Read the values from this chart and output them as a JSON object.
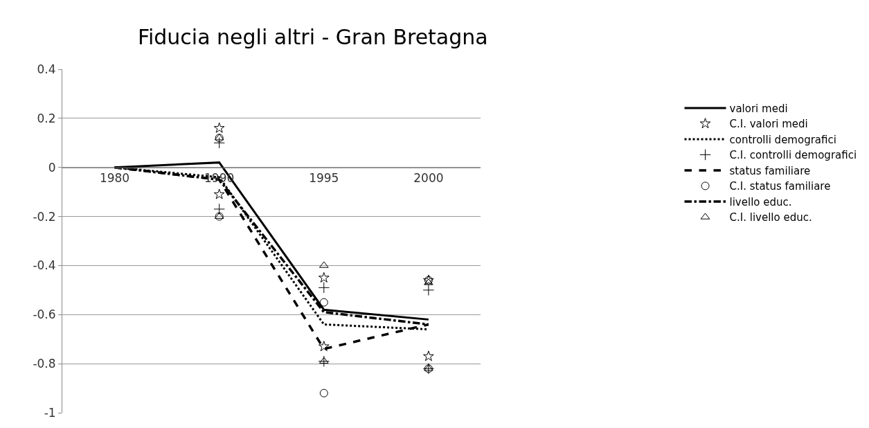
{
  "chart_data": {
    "type": "line",
    "title": "Fiducia negli altri - Gran Bretagna",
    "categories": [
      "1980",
      "1990",
      "1995",
      "2000"
    ],
    "ylim": [
      -1,
      0.4
    ],
    "yticks": [
      -1,
      -0.8,
      -0.6,
      -0.4,
      -0.2,
      0,
      0.2,
      0.4
    ],
    "grid": "y",
    "legend": "right",
    "series": [
      {
        "name": "valori medi",
        "color": "#000000",
        "line_style": "solid",
        "marker": "none",
        "values": [
          0,
          0.02,
          -0.58,
          -0.62
        ]
      },
      {
        "name": "C.I. valori medi",
        "type": "scatter",
        "color": "#000000",
        "marker": "star",
        "values": [
          null,
          0.16,
          -0.45,
          -0.46
        ]
      },
      {
        "name": "controlli demografici",
        "color": "#000000",
        "line_style": "dotted",
        "marker": "none",
        "values": [
          0,
          -0.04,
          -0.64,
          -0.66
        ]
      },
      {
        "name": "C.I. controlli demografici",
        "type": "scatter",
        "color": "#000000",
        "marker": "cross",
        "values": [
          null,
          0.1,
          -0.49,
          -0.5
        ]
      },
      {
        "name": "status familiare",
        "color": "#000000",
        "line_style": "dashed",
        "marker": "none",
        "values": [
          0,
          -0.05,
          -0.74,
          -0.64
        ]
      },
      {
        "name": "C.I. status familiare",
        "type": "scatter",
        "color": "#000000",
        "marker": "circle",
        "values": [
          null,
          0.12,
          -0.55,
          -0.46
        ]
      },
      {
        "name": "livello educ.",
        "color": "#000000",
        "line_style": "dashdot",
        "marker": "none",
        "values": [
          0,
          -0.05,
          -0.59,
          -0.64
        ]
      },
      {
        "name": "C.I. livello educ.",
        "type": "scatter",
        "color": "#000000",
        "marker": "triangle",
        "values": [
          null,
          0.12,
          -0.4,
          -0.47
        ]
      },
      {
        "type": "scatter",
        "color": "#000000",
        "marker": "star",
        "values": [
          null,
          -0.11,
          -0.73,
          -0.77
        ]
      },
      {
        "type": "scatter",
        "color": "#000000",
        "marker": "cross",
        "values": [
          null,
          -0.17,
          -0.79,
          -0.82
        ]
      },
      {
        "type": "scatter",
        "color": "#000000",
        "marker": "circle",
        "values": [
          null,
          -0.2,
          -0.92,
          -0.82
        ]
      },
      {
        "type": "scatter",
        "color": "#000000",
        "marker": "triangle",
        "values": [
          null,
          -0.2,
          -0.79,
          -0.82
        ]
      }
    ]
  }
}
